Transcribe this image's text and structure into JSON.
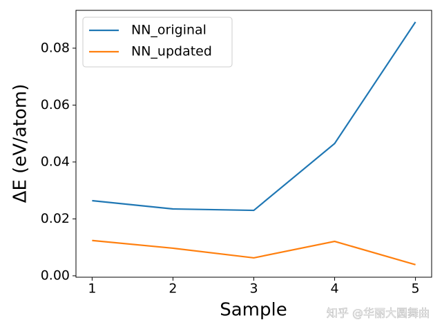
{
  "chart_data": {
    "type": "line",
    "xlabel": "Sample",
    "ylabel": "ΔE (eV/atom)",
    "x": [
      1,
      2,
      3,
      4,
      5
    ],
    "series": [
      {
        "name": "NN_original",
        "color": "#1f77b4",
        "values": [
          0.0264,
          0.0235,
          0.023,
          0.0465,
          0.0892
        ]
      },
      {
        "name": "NN_updated",
        "color": "#ff7f0e",
        "values": [
          0.0124,
          0.0097,
          0.0063,
          0.0121,
          0.0039
        ]
      }
    ],
    "xlim": [
      0.8,
      5.2
    ],
    "xticks": [
      1,
      2,
      3,
      4,
      5
    ],
    "ylim": [
      -0.0005,
      0.0933
    ],
    "yticks": [
      {
        "value": 0,
        "label": "0.00"
      },
      {
        "value": 0.02,
        "label": "0.02"
      },
      {
        "value": 0.04,
        "label": "0.04"
      },
      {
        "value": 0.06,
        "label": "0.06"
      },
      {
        "value": 0.08,
        "label": "0.08"
      }
    ],
    "legend": "upper left",
    "watermark": "知乎 @华丽大圆舞曲"
  }
}
